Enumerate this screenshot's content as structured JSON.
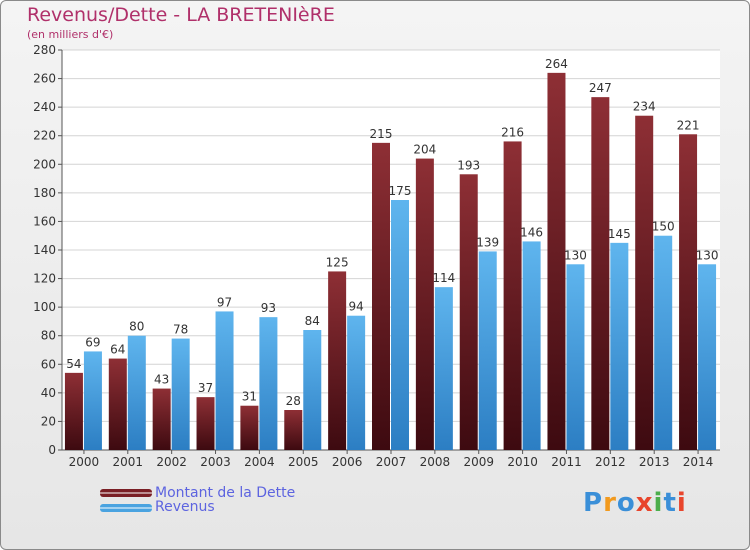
{
  "header": {
    "title": "Revenus/Dette - LA BRETENIèRE",
    "subtitle": "(en milliers d'€)"
  },
  "legend": {
    "items": [
      {
        "label": "Montant de la Dette",
        "color": "#7a1f25"
      },
      {
        "label": "Revenus",
        "color": "#4aa3e0"
      }
    ]
  },
  "logo": {
    "text": "Proxiti",
    "letters": [
      "P",
      "r",
      "o",
      "x",
      "i",
      "t",
      "i"
    ],
    "colors": [
      "#3a8fd8",
      "#f29a1e",
      "#3a8fd8",
      "#e8452c",
      "#4cae4c",
      "#3a8fd8",
      "#e8452c"
    ]
  },
  "chart_data": {
    "type": "bar",
    "title": "Revenus/Dette - LA BRETENIèRE",
    "subtitle": "(en milliers d'€)",
    "xlabel": "",
    "ylabel": "",
    "ylim": [
      0,
      280
    ],
    "ytick_step": 20,
    "grid": true,
    "legend_position": "bottom-left",
    "categories": [
      "2000",
      "2001",
      "2002",
      "2003",
      "2004",
      "2005",
      "2006",
      "2007",
      "2008",
      "2009",
      "2010",
      "2011",
      "2012",
      "2013",
      "2014"
    ],
    "series": [
      {
        "name": "Montant de la Dette",
        "color": "#7a1f25",
        "values": [
          54,
          64,
          43,
          37,
          31,
          28,
          125,
          215,
          204,
          193,
          216,
          264,
          247,
          234,
          221
        ]
      },
      {
        "name": "Revenus",
        "color": "#4aa3e0",
        "values": [
          69,
          80,
          78,
          97,
          93,
          84,
          94,
          175,
          114,
          139,
          146,
          130,
          145,
          150,
          130
        ]
      }
    ]
  }
}
